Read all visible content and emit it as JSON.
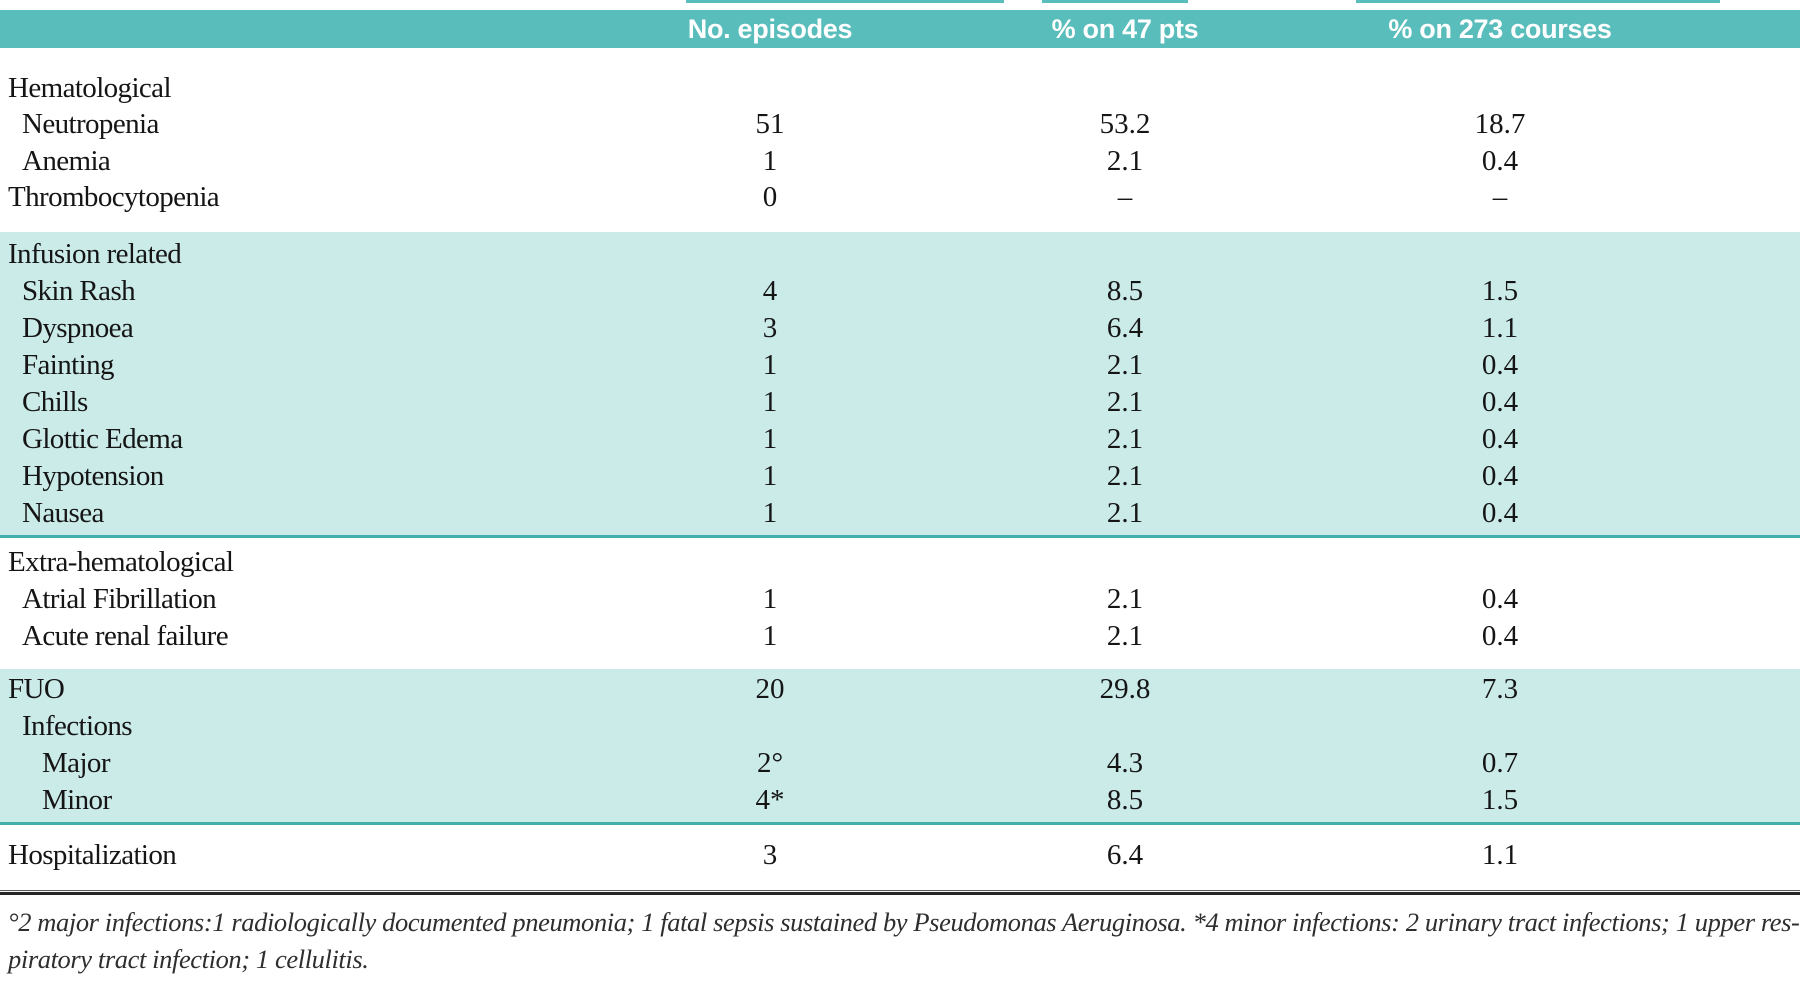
{
  "colors": {
    "header_teal": "#58bdbb",
    "band_teal": "#cbebe9",
    "rule_teal": "#43afad"
  },
  "table": {
    "columns": [
      "No. episodes",
      "% on 47 pts",
      "% on 273 courses"
    ],
    "groups": [
      {
        "band": "white",
        "rows": [
          {
            "label": "Hematological",
            "indent": 0,
            "episodes": "",
            "pct_pts": "",
            "pct_courses": ""
          },
          {
            "label": "Neutropenia",
            "indent": 1,
            "episodes": "51",
            "pct_pts": "53.2",
            "pct_courses": "18.7"
          },
          {
            "label": "Anemia",
            "indent": 1,
            "episodes": "1",
            "pct_pts": "2.1",
            "pct_courses": "0.4"
          },
          {
            "label": "Thrombocytopenia",
            "indent": 0,
            "episodes": "0",
            "pct_pts": "–",
            "pct_courses": "–"
          }
        ]
      },
      {
        "band": "teal",
        "rows": [
          {
            "label": "Infusion related",
            "indent": 0,
            "episodes": "",
            "pct_pts": "",
            "pct_courses": ""
          },
          {
            "label": "Skin Rash",
            "indent": 1,
            "episodes": "4",
            "pct_pts": "8.5",
            "pct_courses": "1.5"
          },
          {
            "label": "Dyspnoea",
            "indent": 1,
            "episodes": "3",
            "pct_pts": "6.4",
            "pct_courses": "1.1"
          },
          {
            "label": "Fainting",
            "indent": 1,
            "episodes": "1",
            "pct_pts": "2.1",
            "pct_courses": "0.4"
          },
          {
            "label": "Chills",
            "indent": 1,
            "episodes": "1",
            "pct_pts": "2.1",
            "pct_courses": "0.4"
          },
          {
            "label": "Glottic Edema",
            "indent": 1,
            "episodes": "1",
            "pct_pts": "2.1",
            "pct_courses": "0.4"
          },
          {
            "label": "Hypotension",
            "indent": 1,
            "episodes": "1",
            "pct_pts": "2.1",
            "pct_courses": "0.4"
          },
          {
            "label": "Nausea",
            "indent": 1,
            "episodes": "1",
            "pct_pts": "2.1",
            "pct_courses": "0.4"
          }
        ]
      },
      {
        "band": "white",
        "rows": [
          {
            "label": "Extra-hematological",
            "indent": 0,
            "episodes": "",
            "pct_pts": "",
            "pct_courses": ""
          },
          {
            "label": "Atrial Fibrillation",
            "indent": 1,
            "episodes": "1",
            "pct_pts": "2.1",
            "pct_courses": "0.4"
          },
          {
            "label": "Acute renal failure",
            "indent": 1,
            "episodes": "1",
            "pct_pts": "2.1",
            "pct_courses": "0.4"
          }
        ]
      },
      {
        "band": "teal",
        "rows": [
          {
            "label": "FUO",
            "indent": 0,
            "episodes": "20",
            "pct_pts": "29.8",
            "pct_courses": "7.3"
          },
          {
            "label": "Infections",
            "indent": 1,
            "episodes": "",
            "pct_pts": "",
            "pct_courses": ""
          },
          {
            "label": "Major",
            "indent": 2,
            "episodes": "2°",
            "pct_pts": "4.3",
            "pct_courses": "0.7"
          },
          {
            "label": "Minor",
            "indent": 2,
            "episodes": "4*",
            "pct_pts": "8.5",
            "pct_courses": "1.5"
          }
        ]
      },
      {
        "band": "white",
        "rows": [
          {
            "label": "Hospitalization",
            "indent": 0,
            "episodes": "3",
            "pct_pts": "6.4",
            "pct_courses": "1.1"
          }
        ]
      }
    ],
    "footnote_lines": [
      "°2 major infections:1 radiologically documented pneumonia; 1 fatal sepsis sustained by Pseudomonas Aeruginosa. *4 minor infections: 2 urinary tract infections; 1 upper res-",
      "piratory tract infection; 1 cellulitis."
    ]
  }
}
